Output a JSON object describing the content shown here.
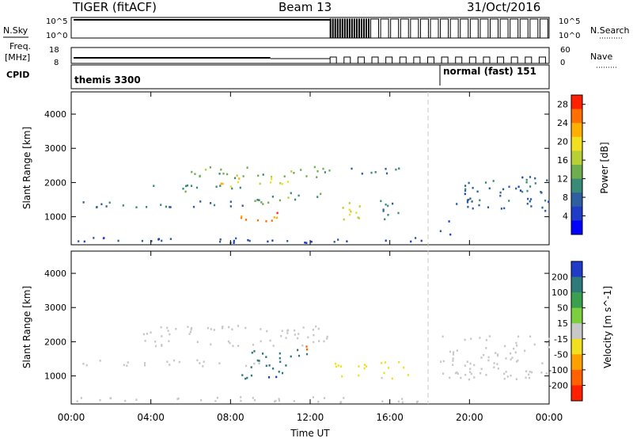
{
  "header": {
    "title": "TIGER (fitACF)",
    "beam": "Beam 13",
    "date": "31/Oct/2016"
  },
  "side_labels": {
    "nsky": "N.Sky",
    "freq": "Freq.",
    "freq_unit": "[MHz]",
    "cpid": "CPID",
    "nsearch": "N.Search",
    "nave": "Nave"
  },
  "aux_ticks": {
    "nsky_left": [
      "10^5",
      "10^0"
    ],
    "nsky_right": [
      "10^5",
      "10^0"
    ],
    "freq_left": [
      "18",
      "8"
    ],
    "nave_right": [
      "60",
      "0"
    ]
  },
  "cpid": {
    "mode1": "themis 3300",
    "mode2": "normal (fast) 151"
  },
  "chart_data": [
    {
      "type": "heatmap",
      "name": "Power",
      "ylabel": "Slant Range [km]",
      "xlabel": "Time UT",
      "x_ticks": [
        "00:00",
        "04:00",
        "08:00",
        "12:00",
        "16:00",
        "20:00",
        "00:00"
      ],
      "xlim_hours": [
        0,
        24
      ],
      "y_ticks": [
        1000,
        2000,
        3000,
        4000
      ],
      "ylim": [
        180,
        4650
      ],
      "colorbar": {
        "label": "Power [dB]",
        "ticks": [
          4,
          8,
          12,
          16,
          20,
          24,
          28
        ],
        "range": [
          0,
          30
        ],
        "colors": [
          "#0000ff",
          "#1e3cc8",
          "#2e5fa0",
          "#3a8a78",
          "#6fae4e",
          "#b8d036",
          "#f0e020",
          "#ffb000",
          "#ff7000",
          "#ff2000"
        ]
      },
      "regions": [
        {
          "t0": 0.2,
          "t1": 17.8,
          "r0": 250,
          "r1": 420,
          "value": 6
        },
        {
          "t0": 0.5,
          "t1": 9.5,
          "r0": 1300,
          "r1": 1500,
          "value": 9
        },
        {
          "t0": 3.5,
          "t1": 8.5,
          "r0": 1750,
          "r1": 1950,
          "value": 10
        },
        {
          "t0": 5.8,
          "t1": 13.0,
          "r0": 2150,
          "r1": 2500,
          "value": 14
        },
        {
          "t0": 7.0,
          "t1": 11.0,
          "r0": 1900,
          "r1": 2150,
          "value": 20
        },
        {
          "t0": 8.5,
          "t1": 11.2,
          "r0": 850,
          "r1": 1150,
          "value": 26
        },
        {
          "t0": 9.0,
          "t1": 12.5,
          "r0": 1400,
          "r1": 1750,
          "value": 13
        },
        {
          "t0": 13.2,
          "t1": 14.8,
          "r0": 950,
          "r1": 1500,
          "value": 17
        },
        {
          "t0": 14.0,
          "t1": 16.5,
          "r0": 2200,
          "r1": 2500,
          "value": 9
        },
        {
          "t0": 15.5,
          "t1": 17.0,
          "r0": 950,
          "r1": 1500,
          "value": 9
        },
        {
          "t0": 18.5,
          "t1": 19.0,
          "r0": 500,
          "r1": 1100,
          "value": 8
        },
        {
          "t0": 19.3,
          "t1": 24.0,
          "r0": 1200,
          "r1": 2200,
          "value": 8
        }
      ]
    },
    {
      "type": "heatmap",
      "name": "Velocity",
      "ylabel": "Slant Range [km]",
      "xlabel": "Time UT",
      "x_ticks": [
        "00:00",
        "04:00",
        "08:00",
        "12:00",
        "16:00",
        "20:00",
        "00:00"
      ],
      "xlim_hours": [
        0,
        24
      ],
      "y_ticks": [
        1000,
        2000,
        3000,
        4000
      ],
      "ylim": [
        180,
        4650
      ],
      "colorbar": {
        "label": "Velocity [m s^-1]",
        "ticks": [
          200,
          100,
          50,
          15,
          -15,
          -50,
          -100,
          -200
        ],
        "range": [
          -250,
          250
        ],
        "colors": [
          "#1e3cc8",
          "#2e7a7a",
          "#3aa050",
          "#7cd040",
          "#c8c8c8",
          "#f0e020",
          "#ffa000",
          "#ff6000",
          "#ff2000"
        ]
      },
      "regions": [
        {
          "t0": 0.2,
          "t1": 17.8,
          "r0": 250,
          "r1": 420,
          "value": 0
        },
        {
          "t0": 0.5,
          "t1": 9.5,
          "r0": 1300,
          "r1": 1500,
          "value": 0
        },
        {
          "t0": 3.5,
          "t1": 13.0,
          "r0": 1900,
          "r1": 2500,
          "value": 0
        },
        {
          "t0": 8.5,
          "t1": 11.2,
          "r0": 900,
          "r1": 1350,
          "value": 180
        },
        {
          "t0": 9.0,
          "t1": 12.0,
          "r0": 1400,
          "r1": 1800,
          "value": 160
        },
        {
          "t0": 11.0,
          "t1": 12.0,
          "r0": 1750,
          "r1": 1900,
          "value": -150
        },
        {
          "t0": 13.2,
          "t1": 14.8,
          "r0": 950,
          "r1": 1500,
          "value": -60
        },
        {
          "t0": 15.5,
          "t1": 17.0,
          "r0": 950,
          "r1": 1500,
          "value": -40
        },
        {
          "t0": 18.5,
          "t1": 24.0,
          "r0": 900,
          "r1": 2200,
          "value": 0
        }
      ]
    }
  ],
  "colors": {
    "dashed_marker": "#c8c8c8",
    "frame": "#000000"
  }
}
